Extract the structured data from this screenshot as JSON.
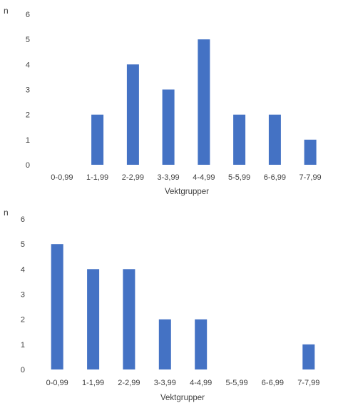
{
  "chart_data": [
    {
      "type": "bar",
      "title": "",
      "xlabel": "Vektgrupper",
      "ylabel": "n",
      "categories": [
        "0-0,99",
        "1-1,99",
        "2-2,99",
        "3-3,99",
        "4-4,99",
        "5-5,99",
        "6-6,99",
        "7-7,99"
      ],
      "values": [
        0,
        2,
        4,
        3,
        5,
        2,
        2,
        1
      ],
      "ylim": [
        0,
        6
      ],
      "yticks": [
        "0",
        "1",
        "2",
        "3",
        "4",
        "5",
        "6"
      ],
      "grid": false,
      "bar_color": "#4472c4"
    },
    {
      "type": "bar",
      "title": "",
      "xlabel": "Vektgrupper",
      "ylabel": "n",
      "categories": [
        "0-0,99",
        "1-1,99",
        "2-2,99",
        "3-3,99",
        "4-4,99",
        "5-5,99",
        "6-6,99",
        "7-7,99"
      ],
      "values": [
        5,
        4,
        4,
        2,
        2,
        0,
        0,
        1
      ],
      "ylim": [
        0,
        6
      ],
      "yticks": [
        "0",
        "1",
        "2",
        "3",
        "4",
        "5",
        "6"
      ],
      "grid": false,
      "bar_color": "#4472c4"
    }
  ]
}
